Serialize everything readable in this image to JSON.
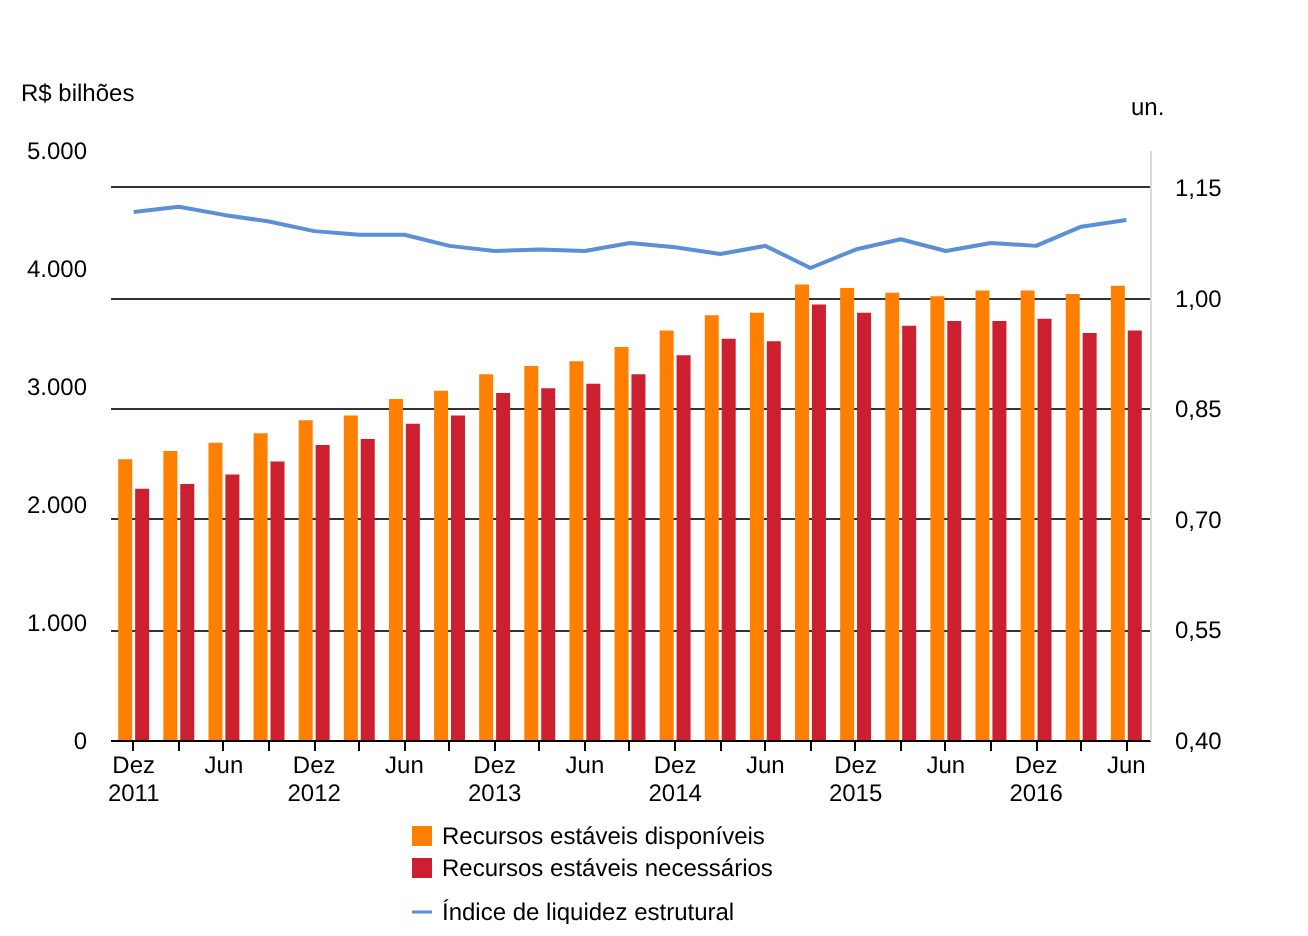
{
  "chart_data": {
    "type": "bar",
    "ylabel": "R$ bilhões",
    "y2label": "un.",
    "categories": [
      "Dez 2011",
      null,
      "Jun",
      null,
      "Dez 2012",
      null,
      "Jun",
      null,
      "Dez 2013",
      null,
      "Jun",
      null,
      "Dez 2014",
      null,
      "Jun",
      null,
      "Dez 2015",
      null,
      "Jun",
      null,
      "Dez 2016",
      null,
      "Jun"
    ],
    "series": [
      {
        "name": "Recursos estáveis disponíveis",
        "color": "#ff8000",
        "values": [
          2380,
          2450,
          2520,
          2600,
          2710,
          2750,
          2890,
          2960,
          3100,
          3170,
          3210,
          3330,
          3470,
          3600,
          3620,
          3860,
          3830,
          3790,
          3760,
          3810,
          3810,
          3780,
          3850
        ]
      },
      {
        "name": "Recursos estáveis necessários",
        "color": "#cc2030",
        "values": [
          2130,
          2170,
          2250,
          2360,
          2500,
          2550,
          2680,
          2750,
          2940,
          2980,
          3020,
          3100,
          3260,
          3400,
          3380,
          3690,
          3620,
          3510,
          3550,
          3550,
          3570,
          3450,
          3470
        ]
      },
      {
        "name": "Índice de liquidez estrutural",
        "type": "line",
        "axis": "y2",
        "color": "#5b8fd6",
        "values": [
          1.116,
          1.123,
          1.112,
          1.103,
          1.09,
          1.085,
          1.085,
          1.07,
          1.063,
          1.065,
          1.063,
          1.074,
          1.068,
          1.059,
          1.07,
          1.04,
          1.065,
          1.079,
          1.063,
          1.074,
          1.07,
          1.096,
          1.105
        ]
      }
    ],
    "ylim": [
      0,
      5000
    ],
    "yticks": [
      0,
      {
        "value": 1000,
        "label": "1.000"
      },
      {
        "value": 2000,
        "label": "2.000"
      },
      {
        "value": 3000,
        "label": "3.000"
      },
      {
        "value": 4000,
        "label": "4.000"
      },
      {
        "value": 5000,
        "label": "5.000"
      }
    ],
    "y2lim": [
      0.4,
      1.2
    ],
    "y2ticks": [
      {
        "value": 0.4,
        "label": "0,40"
      },
      {
        "value": 0.55,
        "label": "0,55"
      },
      {
        "value": 0.7,
        "label": "0,70"
      },
      {
        "value": 0.85,
        "label": "0,85"
      },
      {
        "value": 1.0,
        "label": "1,00"
      },
      {
        "value": 1.15,
        "label": "1,15"
      }
    ],
    "grid": "y",
    "legend": "bottom",
    "marker": "none",
    "line_style": "solid"
  }
}
